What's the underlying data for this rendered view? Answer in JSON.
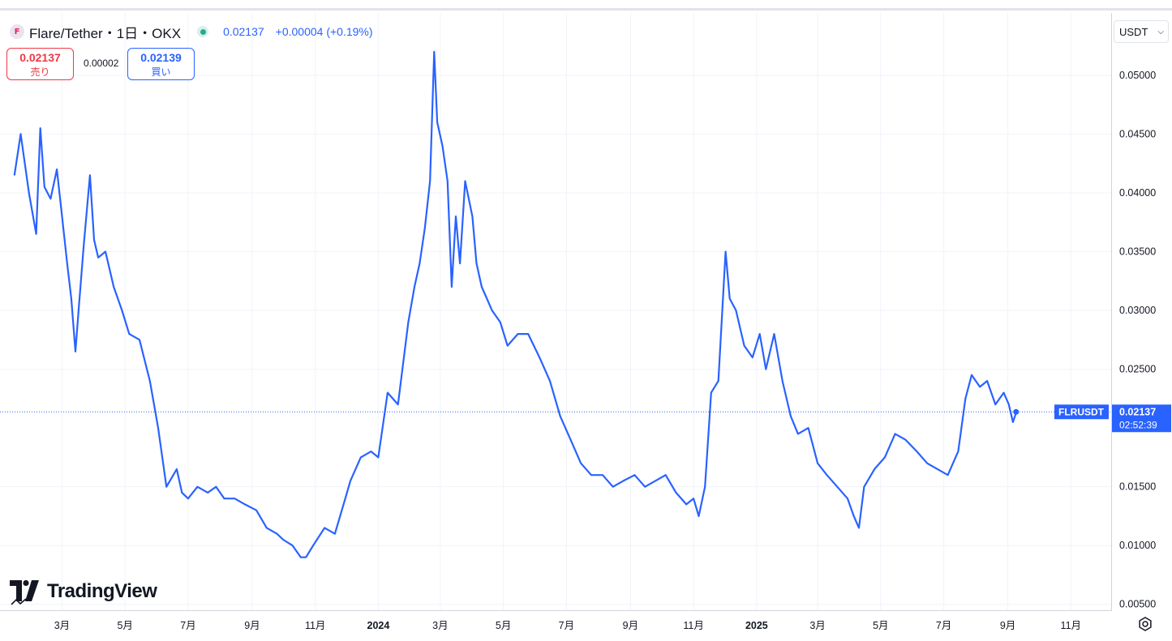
{
  "header": {
    "title": "Flare/Tether・1日・OKX",
    "last": "0.02137",
    "change": "+0.00004 (+0.19%)",
    "status_color": "#22ab94"
  },
  "trade": {
    "sell_price": "0.02137",
    "sell_label": "売り",
    "spread": "0.00002",
    "buy_price": "0.02139",
    "buy_label": "買い"
  },
  "currency_select": {
    "value": "USDT"
  },
  "brand": {
    "name": "TradingView"
  },
  "price_label": {
    "symbol": "FLRUSDT",
    "price": "0.02137",
    "countdown": "02:52:39"
  },
  "colors": {
    "line": "#2962ff",
    "accent": "#2962ff",
    "sell": "#f23645",
    "grid": "#f0f3fa"
  },
  "icons": {
    "settings": "gear-icon",
    "dropdown": "chevron-down-icon",
    "logo": "tradingview-logo"
  },
  "chart_data": {
    "type": "line",
    "series": [
      {
        "name": "FLRUSDT",
        "x": [
          "2023-01-14",
          "2023-01-20",
          "2023-01-28",
          "2023-02-04",
          "2023-02-08",
          "2023-02-12",
          "2023-02-18",
          "2023-02-24",
          "2023-03-01",
          "2023-03-06",
          "2023-03-10",
          "2023-03-14",
          "2023-03-17",
          "2023-03-22",
          "2023-03-28",
          "2023-04-01",
          "2023-04-05",
          "2023-04-12",
          "2023-04-20",
          "2023-04-28",
          "2023-05-05",
          "2023-05-15",
          "2023-05-25",
          "2023-06-02",
          "2023-06-06",
          "2023-06-10",
          "2023-06-20",
          "2023-06-25",
          "2023-07-01",
          "2023-07-10",
          "2023-07-20",
          "2023-07-28",
          "2023-08-05",
          "2023-08-15",
          "2023-08-25",
          "2023-09-05",
          "2023-09-15",
          "2023-09-25",
          "2023-10-01",
          "2023-10-10",
          "2023-10-18",
          "2023-10-23",
          "2023-10-30",
          "2023-11-10",
          "2023-11-20",
          "2023-11-30",
          "2023-12-05",
          "2023-12-15",
          "2023-12-25",
          "2024-01-01",
          "2024-01-10",
          "2024-01-20",
          "2024-01-30",
          "2024-02-05",
          "2024-02-10",
          "2024-02-15",
          "2024-02-20",
          "2024-02-24",
          "2024-02-27",
          "2024-03-03",
          "2024-03-08",
          "2024-03-12",
          "2024-03-16",
          "2024-03-20",
          "2024-03-25",
          "2024-04-01",
          "2024-04-05",
          "2024-04-10",
          "2024-04-15",
          "2024-04-20",
          "2024-04-28",
          "2024-05-05",
          "2024-05-15",
          "2024-05-25",
          "2024-06-05",
          "2024-06-15",
          "2024-06-25",
          "2024-07-05",
          "2024-07-15",
          "2024-07-25",
          "2024-08-05",
          "2024-08-15",
          "2024-08-25",
          "2024-09-05",
          "2024-09-15",
          "2024-09-25",
          "2024-10-05",
          "2024-10-15",
          "2024-10-25",
          "2024-11-01",
          "2024-11-06",
          "2024-11-12",
          "2024-11-18",
          "2024-11-25",
          "2024-12-02",
          "2024-12-06",
          "2024-12-12",
          "2024-12-20",
          "2024-12-28",
          "2025-01-04",
          "2025-01-10",
          "2025-01-18",
          "2025-01-26",
          "2025-02-03",
          "2025-02-10",
          "2025-02-20",
          "2025-03-01",
          "2025-03-10",
          "2025-03-20",
          "2025-03-30",
          "2025-04-05",
          "2025-04-10",
          "2025-04-15",
          "2025-04-25",
          "2025-05-05",
          "2025-05-15",
          "2025-05-25",
          "2025-06-05",
          "2025-06-15",
          "2025-06-25",
          "2025-07-05",
          "2025-07-15",
          "2025-07-22",
          "2025-07-28",
          "2025-08-05",
          "2025-08-12",
          "2025-08-20",
          "2025-08-28",
          "2025-09-02",
          "2025-09-06",
          "2025-09-09"
        ],
        "values": [
          0.0415,
          0.045,
          0.04,
          0.0365,
          0.0455,
          0.0405,
          0.0395,
          0.042,
          0.038,
          0.034,
          0.031,
          0.0265,
          0.03,
          0.0355,
          0.0415,
          0.036,
          0.0345,
          0.035,
          0.032,
          0.03,
          0.028,
          0.0275,
          0.024,
          0.02,
          0.0175,
          0.015,
          0.0165,
          0.0145,
          0.014,
          0.015,
          0.0145,
          0.015,
          0.014,
          0.014,
          0.0135,
          0.013,
          0.0115,
          0.011,
          0.0105,
          0.01,
          0.009,
          0.009,
          0.01,
          0.0115,
          0.011,
          0.014,
          0.0155,
          0.0175,
          0.018,
          0.0175,
          0.023,
          0.022,
          0.029,
          0.032,
          0.034,
          0.037,
          0.041,
          0.052,
          0.046,
          0.044,
          0.041,
          0.032,
          0.038,
          0.034,
          0.041,
          0.038,
          0.034,
          0.032,
          0.031,
          0.03,
          0.029,
          0.027,
          0.028,
          0.028,
          0.026,
          0.024,
          0.021,
          0.019,
          0.017,
          0.016,
          0.016,
          0.015,
          0.0155,
          0.016,
          0.015,
          0.0155,
          0.016,
          0.0145,
          0.0135,
          0.014,
          0.0125,
          0.015,
          0.023,
          0.024,
          0.035,
          0.031,
          0.03,
          0.027,
          0.026,
          0.028,
          0.025,
          0.028,
          0.024,
          0.021,
          0.0195,
          0.02,
          0.017,
          0.016,
          0.015,
          0.014,
          0.0125,
          0.0115,
          0.015,
          0.0165,
          0.0175,
          0.0195,
          0.019,
          0.018,
          0.017,
          0.0165,
          0.016,
          0.018,
          0.0225,
          0.0245,
          0.0235,
          0.024,
          0.022,
          0.023,
          0.022,
          0.0205,
          0.0213
        ]
      }
    ],
    "x_ticks": [
      "3月",
      "5月",
      "7月",
      "9月",
      "11月",
      "2024",
      "3月",
      "5月",
      "7月",
      "9月",
      "11月",
      "2025",
      "3月",
      "5月",
      "7月",
      "9月",
      "11月"
    ],
    "x_tick_dates": [
      "2023-03-01",
      "2023-05-01",
      "2023-07-01",
      "2023-09-01",
      "2023-11-01",
      "2024-01-01",
      "2024-03-01",
      "2024-05-01",
      "2024-07-01",
      "2024-09-01",
      "2024-11-01",
      "2025-01-01",
      "2025-03-01",
      "2025-05-01",
      "2025-07-01",
      "2025-09-01",
      "2025-11-01"
    ],
    "y_ticks": [
      "0.05000",
      "0.04500",
      "0.04000",
      "0.03500",
      "0.03000",
      "0.02500",
      "0.01500",
      "0.01000",
      "0.00500"
    ],
    "y_tick_values": [
      0.05,
      0.045,
      0.04,
      0.035,
      0.03,
      0.025,
      0.015,
      0.01,
      0.005
    ],
    "ylim": [
      0.0045,
      0.0553
    ],
    "xlim": [
      "2022-12-31",
      "2025-12-10"
    ],
    "last_price": 0.02137,
    "grid": true,
    "legend": "none"
  }
}
